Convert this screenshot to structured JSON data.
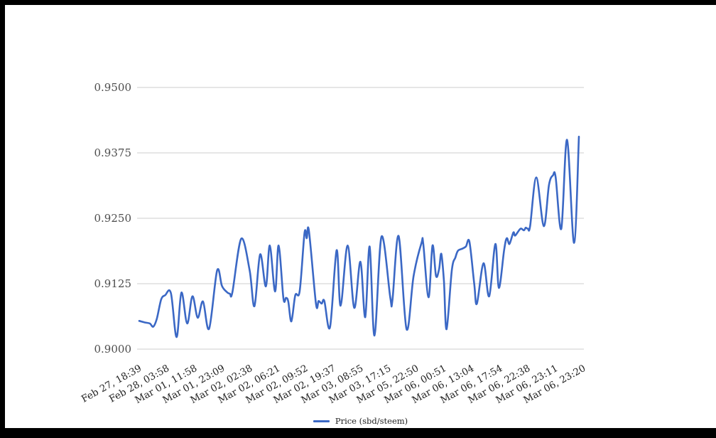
{
  "colors": {
    "frame": "#000000",
    "panel_bg": "#ffffff",
    "line": "#3b68c5",
    "grid": "#cccccc",
    "y_label": "#4d4d4d",
    "x_label": "#222222"
  },
  "legend": {
    "label": "Price (sbd/steem)",
    "swatch_color": "#3b68c5"
  },
  "chart_data": {
    "type": "line",
    "smooth": true,
    "grid": true,
    "legend_position": "bottom",
    "title": "",
    "xlabel": "",
    "ylabel": "",
    "ylim": [
      0.9,
      0.95
    ],
    "y_tick_values": [
      0.9,
      0.9125,
      0.925,
      0.9375,
      0.95
    ],
    "y_tick_labels": [
      "0.9000",
      "0.9125",
      "0.9250",
      "0.9375",
      "0.9500"
    ],
    "x_tick_labels": [
      "Feb 27, 18:39",
      "Feb 28, 03:58",
      "Mar 01, 11:58",
      "Mar 01, 23:09",
      "Mar 02, 02:38",
      "Mar 02, 06:21",
      "Mar 02, 09:52",
      "Mar 02, 19:37",
      "Mar 03, 08:55",
      "Mar 03, 17:15",
      "Mar 05, 22:50",
      "Mar 06, 00:51",
      "Mar 06, 13:04",
      "Mar 06, 17:54",
      "Mar 06, 22:38",
      "Mar 06, 23:11",
      "Mar 06, 23:20"
    ],
    "series": [
      {
        "name": "Price (sbd/steem)",
        "color": "#3b68c5",
        "points": [
          [
            0.0,
            0.9054
          ],
          [
            0.013,
            0.9051
          ],
          [
            0.024,
            0.9049
          ],
          [
            0.032,
            0.9043
          ],
          [
            0.04,
            0.9058
          ],
          [
            0.05,
            0.9095
          ],
          [
            0.059,
            0.9103
          ],
          [
            0.072,
            0.9107
          ],
          [
            0.085,
            0.9023
          ],
          [
            0.096,
            0.9108
          ],
          [
            0.109,
            0.9049
          ],
          [
            0.121,
            0.9101
          ],
          [
            0.133,
            0.906
          ],
          [
            0.145,
            0.9091
          ],
          [
            0.159,
            0.9039
          ],
          [
            0.177,
            0.915
          ],
          [
            0.188,
            0.9121
          ],
          [
            0.198,
            0.911
          ],
          [
            0.206,
            0.9106
          ],
          [
            0.212,
            0.9109
          ],
          [
            0.232,
            0.9211
          ],
          [
            0.251,
            0.9151
          ],
          [
            0.262,
            0.9082
          ],
          [
            0.275,
            0.9181
          ],
          [
            0.288,
            0.912
          ],
          [
            0.297,
            0.9198
          ],
          [
            0.309,
            0.911
          ],
          [
            0.317,
            0.9198
          ],
          [
            0.328,
            0.9097
          ],
          [
            0.334,
            0.9098
          ],
          [
            0.339,
            0.9091
          ],
          [
            0.346,
            0.9053
          ],
          [
            0.355,
            0.9103
          ],
          [
            0.365,
            0.9111
          ],
          [
            0.376,
            0.9222
          ],
          [
            0.381,
            0.9212
          ],
          [
            0.386,
            0.9226
          ],
          [
            0.402,
            0.9087
          ],
          [
            0.408,
            0.9092
          ],
          [
            0.415,
            0.9087
          ],
          [
            0.421,
            0.9092
          ],
          [
            0.434,
            0.9042
          ],
          [
            0.449,
            0.9189
          ],
          [
            0.458,
            0.9083
          ],
          [
            0.474,
            0.9198
          ],
          [
            0.489,
            0.9079
          ],
          [
            0.503,
            0.9167
          ],
          [
            0.514,
            0.9061
          ],
          [
            0.524,
            0.9196
          ],
          [
            0.535,
            0.9026
          ],
          [
            0.551,
            0.9215
          ],
          [
            0.571,
            0.9099
          ],
          [
            0.576,
            0.9094
          ],
          [
            0.59,
            0.9216
          ],
          [
            0.608,
            0.9038
          ],
          [
            0.624,
            0.914
          ],
          [
            0.642,
            0.9203
          ],
          [
            0.646,
            0.9201
          ],
          [
            0.658,
            0.9099
          ],
          [
            0.667,
            0.9198
          ],
          [
            0.675,
            0.914
          ],
          [
            0.682,
            0.9153
          ],
          [
            0.687,
            0.9182
          ],
          [
            0.693,
            0.913
          ],
          [
            0.699,
            0.9038
          ],
          [
            0.711,
            0.9151
          ],
          [
            0.719,
            0.9175
          ],
          [
            0.725,
            0.9188
          ],
          [
            0.735,
            0.9192
          ],
          [
            0.743,
            0.9196
          ],
          [
            0.751,
            0.9205
          ],
          [
            0.762,
            0.9124
          ],
          [
            0.768,
            0.9087
          ],
          [
            0.783,
            0.9164
          ],
          [
            0.796,
            0.9101
          ],
          [
            0.81,
            0.9201
          ],
          [
            0.818,
            0.9117
          ],
          [
            0.83,
            0.919
          ],
          [
            0.836,
            0.9212
          ],
          [
            0.842,
            0.9201
          ],
          [
            0.851,
            0.9223
          ],
          [
            0.855,
            0.9217
          ],
          [
            0.867,
            0.923
          ],
          [
            0.875,
            0.9227
          ],
          [
            0.879,
            0.9232
          ],
          [
            0.884,
            0.923
          ],
          [
            0.889,
            0.9235
          ],
          [
            0.903,
            0.9328
          ],
          [
            0.92,
            0.9235
          ],
          [
            0.932,
            0.9314
          ],
          [
            0.941,
            0.9332
          ],
          [
            0.947,
            0.9329
          ],
          [
            0.96,
            0.923
          ],
          [
            0.973,
            0.94
          ],
          [
            0.989,
            0.9203
          ],
          [
            1.0,
            0.9406
          ]
        ]
      }
    ]
  }
}
